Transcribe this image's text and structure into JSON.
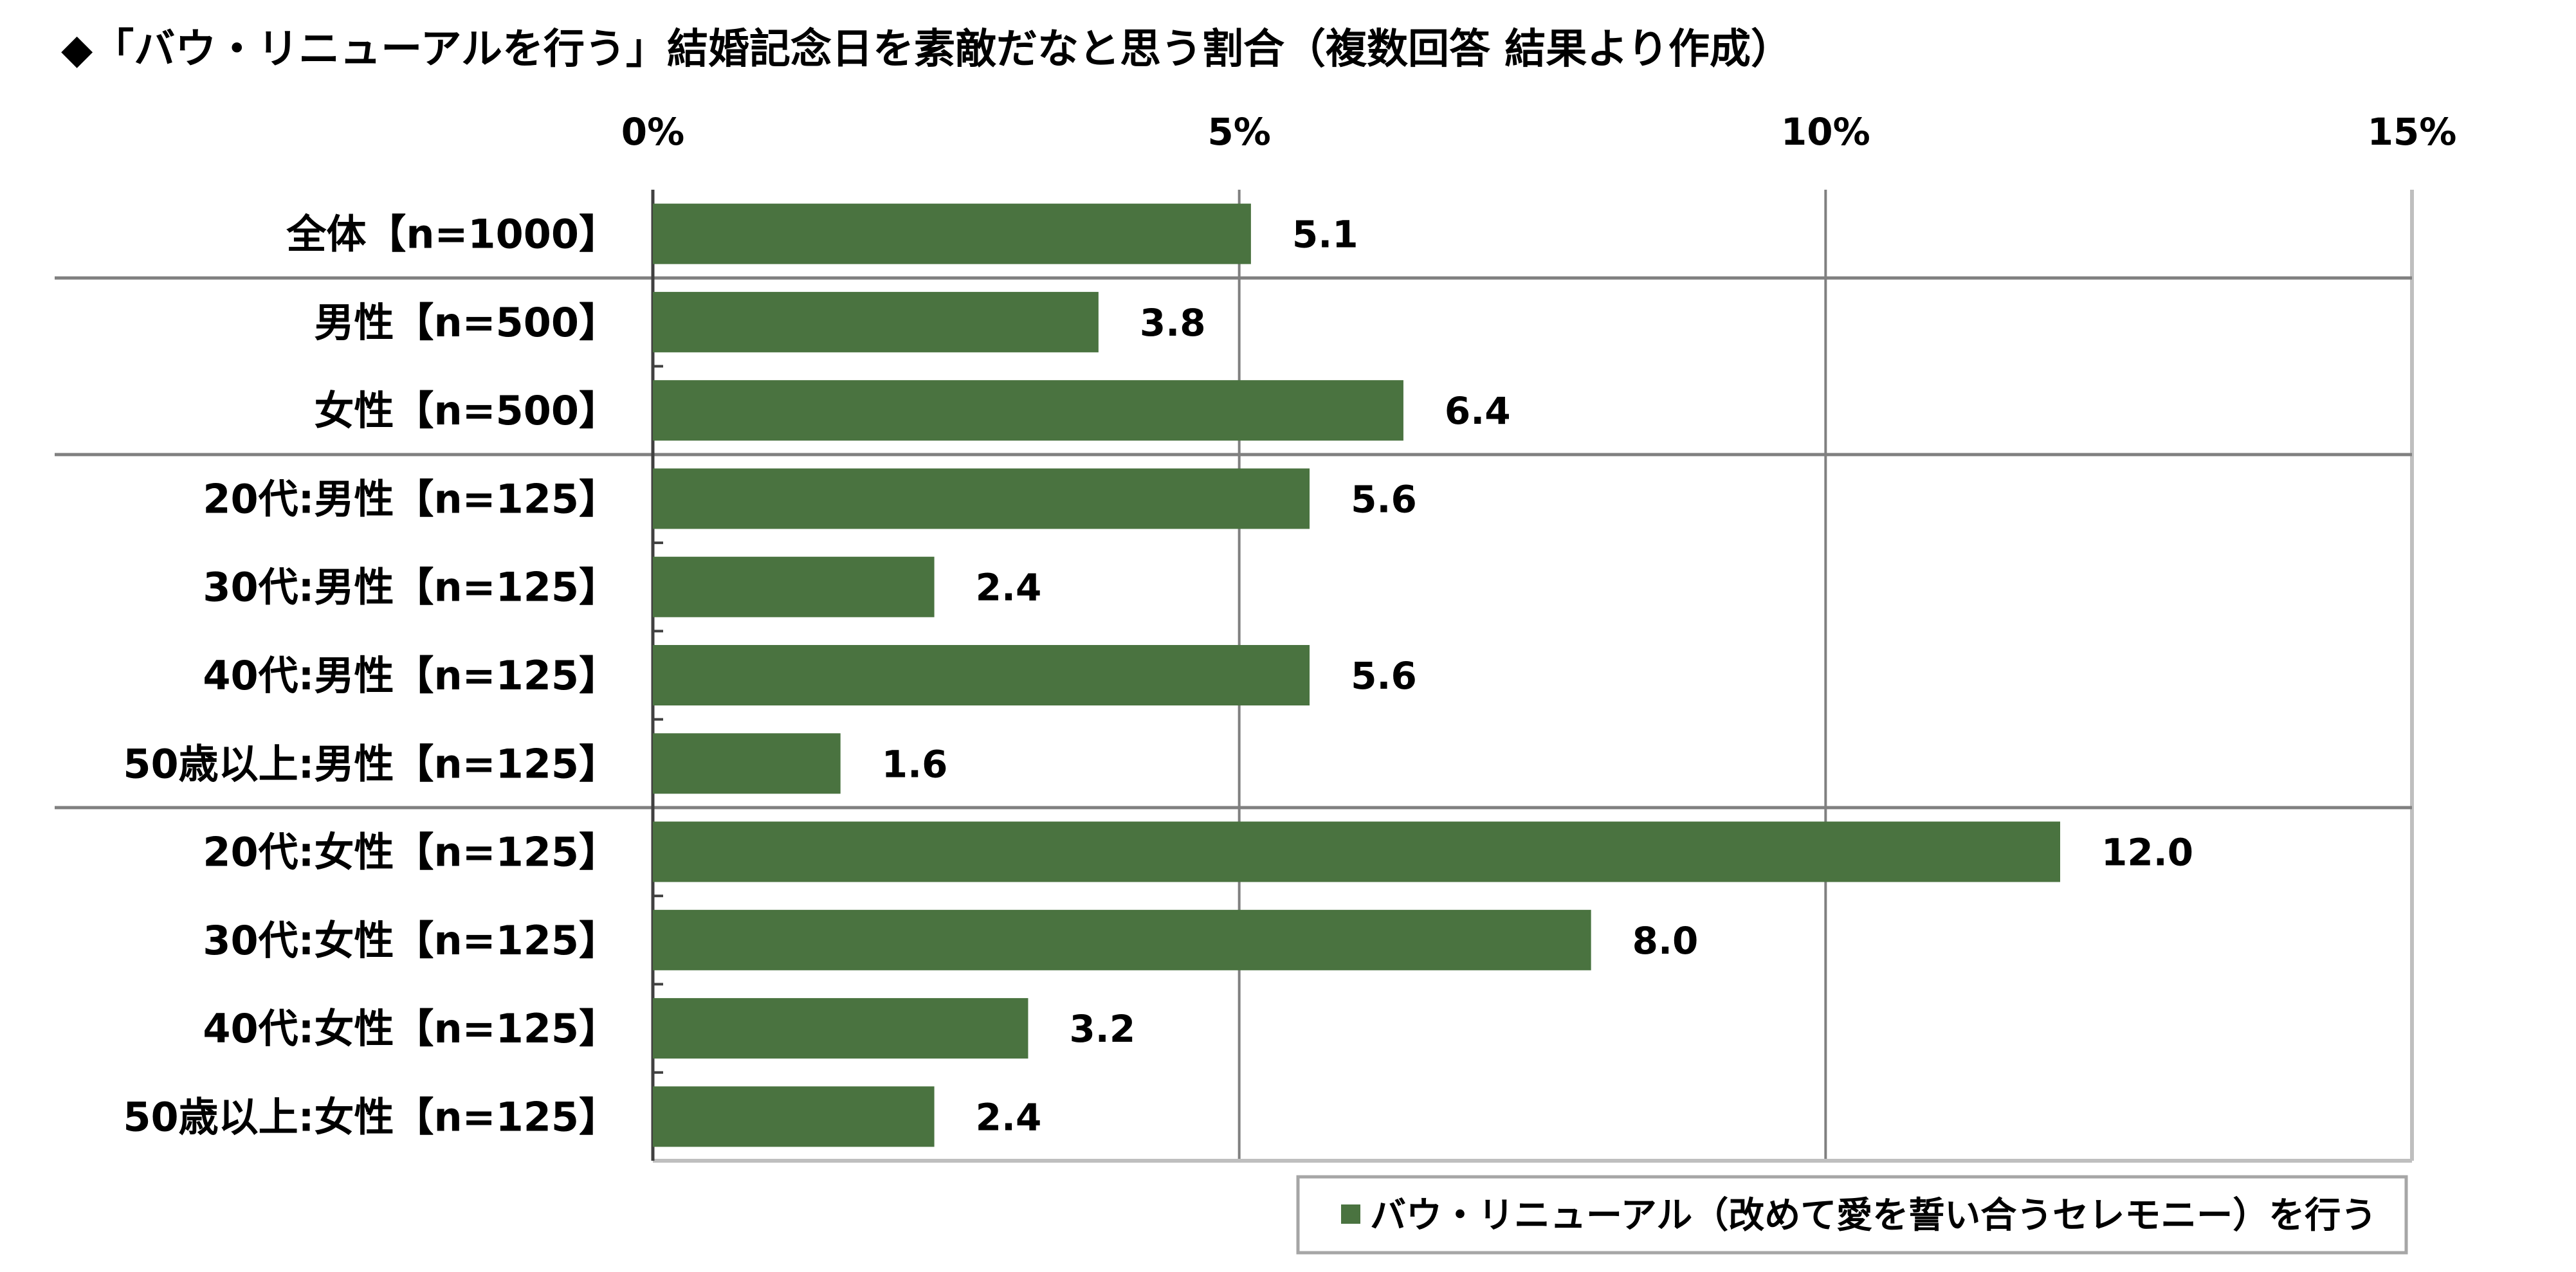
{
  "chart_data": {
    "type": "bar",
    "orientation": "horizontal",
    "title": "◆「バウ・リニューアルを行う」結婚記念日を素敵だなと思う割合（複数回答 結果より作成）",
    "categories": [
      "全体【n=1000】",
      "男性【n=500】",
      "女性【n=500】",
      "20代:男性【n=125】",
      "30代:男性【n=125】",
      "40代:男性【n=125】",
      "50歳以上:男性【n=125】",
      "20代:女性【n=125】",
      "30代:女性【n=125】",
      "40代:女性【n=125】",
      "50歳以上:女性【n=125】"
    ],
    "series": [
      {
        "name": "バウ・リニューアル（改めて愛を誓い合うセレモニー）を行う",
        "color": "#4a7340",
        "values": [
          5.1,
          3.8,
          6.4,
          5.6,
          2.4,
          5.6,
          1.6,
          12.0,
          8.0,
          3.2,
          2.4
        ]
      }
    ],
    "value_labels": [
      "5.1",
      "3.8",
      "6.4",
      "5.6",
      "2.4",
      "5.6",
      "1.6",
      "12.0",
      "8.0",
      "3.2",
      "2.4"
    ],
    "xlim": [
      0,
      15
    ],
    "xticks": [
      0,
      5,
      10,
      15
    ],
    "xtick_labels": [
      "0%",
      "5%",
      "10%",
      "15%"
    ],
    "xaxis_position": "top",
    "grid": true,
    "group_separators_after_index": [
      0,
      2,
      6
    ],
    "legend_position": "bottom-right"
  }
}
